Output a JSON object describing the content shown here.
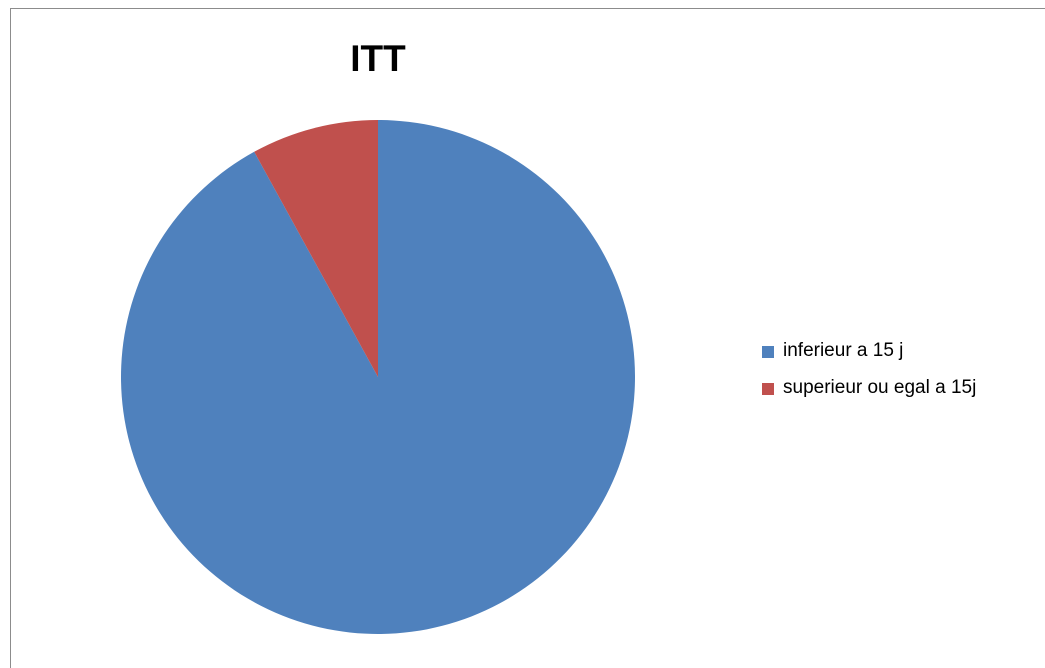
{
  "chart_data": {
    "type": "pie",
    "title": "ITT",
    "categories": [
      "inferieur a 15 j",
      "superieur ou egal a 15j"
    ],
    "values": [
      92,
      8
    ],
    "colors": [
      "#4f81bd",
      "#c0504d"
    ],
    "legend_position": "right"
  }
}
